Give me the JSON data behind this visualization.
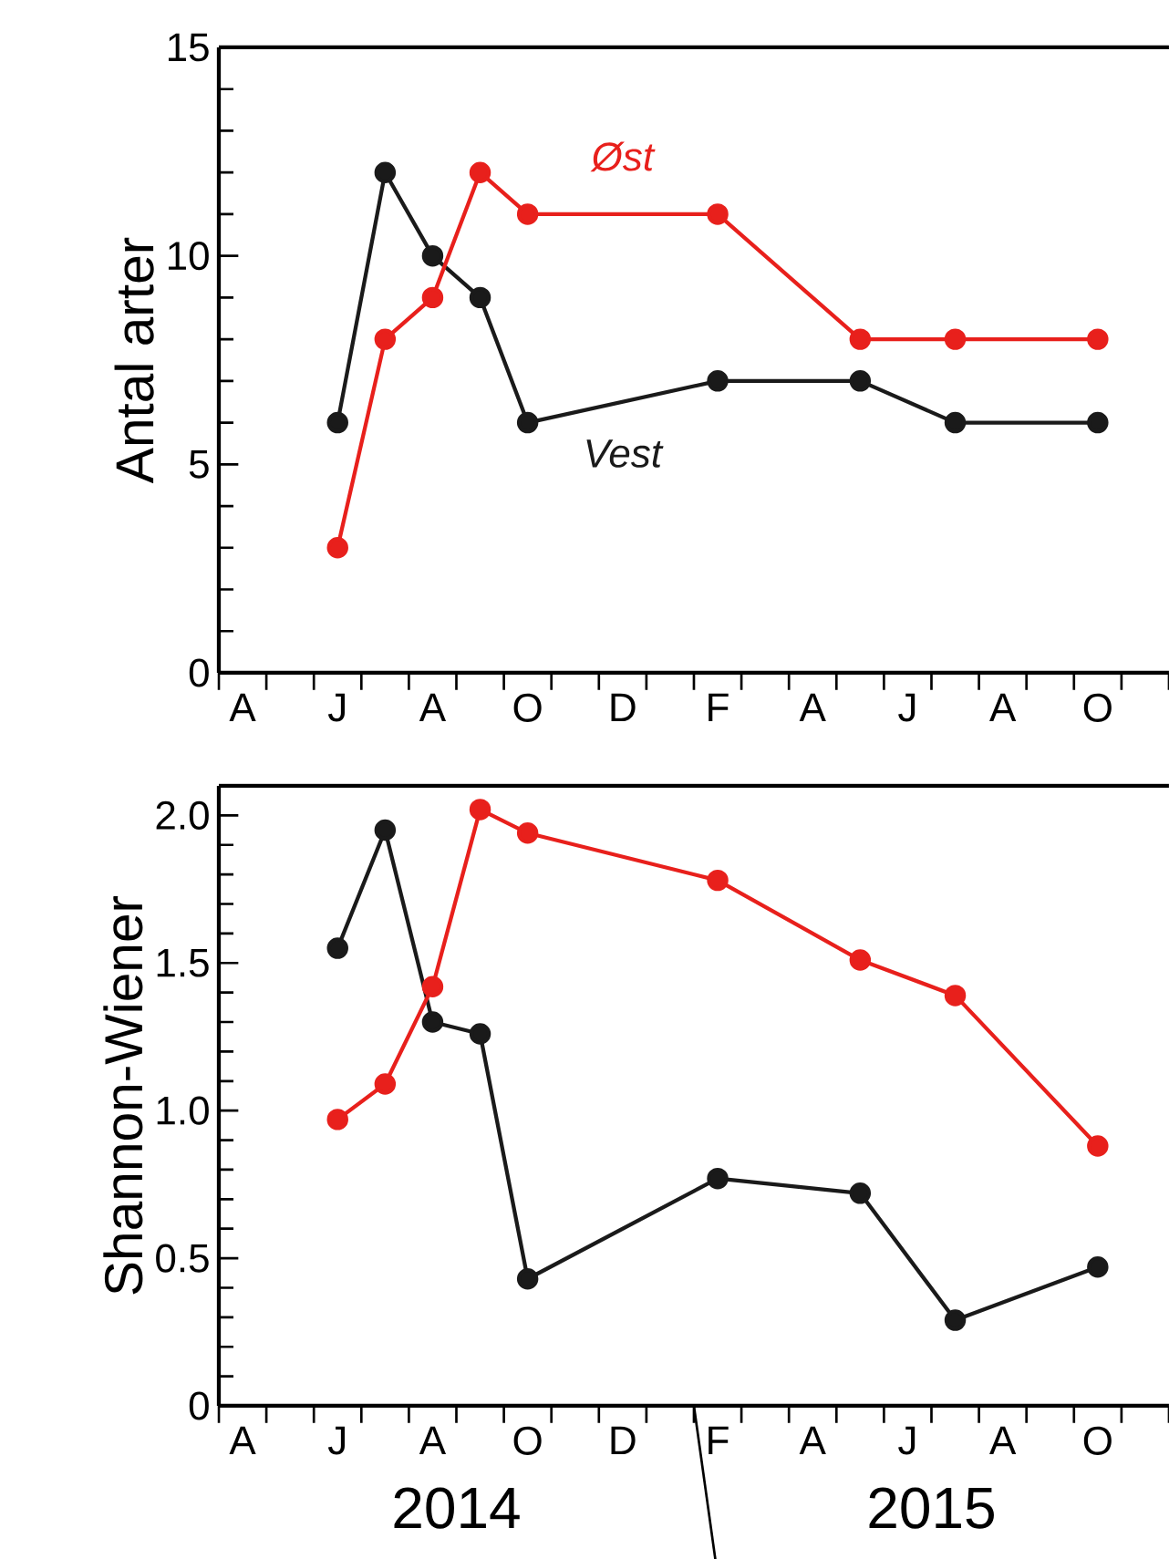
{
  "chart_data": [
    {
      "type": "line",
      "ylabel": "Antal arter",
      "marker": "circle",
      "line_style": "solid",
      "categories": [
        "A",
        null,
        "J",
        null,
        "A",
        null,
        "O",
        null,
        "D",
        null,
        "F",
        null,
        "A",
        null,
        "J",
        null,
        "A",
        null,
        "O",
        null
      ],
      "series": [
        {
          "name": "Vest",
          "color": "#1a1a1a",
          "values": [
            null,
            null,
            6,
            12,
            10,
            9,
            6,
            null,
            null,
            null,
            7,
            null,
            null,
            7,
            null,
            6,
            null,
            null,
            6,
            null
          ]
        },
        {
          "name": "Øst",
          "color": "#e8201c",
          "values": [
            null,
            null,
            3,
            8,
            9,
            12,
            11,
            null,
            null,
            null,
            11,
            null,
            null,
            8,
            null,
            8,
            null,
            null,
            8,
            null
          ]
        }
      ],
      "ylim": [
        0,
        15
      ],
      "yticks": [
        0,
        {
          "value": 1,
          "label": null
        },
        {
          "value": 2,
          "label": null
        },
        {
          "value": 3,
          "label": null
        },
        {
          "value": 4,
          "label": null
        },
        5,
        {
          "value": 6,
          "label": null
        },
        {
          "value": 7,
          "label": null
        },
        {
          "value": 8,
          "label": null
        },
        {
          "value": 9,
          "label": null
        },
        10,
        {
          "value": 11,
          "label": null
        },
        {
          "value": 12,
          "label": null
        },
        {
          "value": 13,
          "label": null
        },
        {
          "value": 14,
          "label": null
        },
        15
      ]
    },
    {
      "type": "line",
      "ylabel": "Shannon-Wiener",
      "marker": "circle",
      "line_style": "solid",
      "categories": [
        "A",
        null,
        "J",
        null,
        "A",
        null,
        "O",
        null,
        "D",
        null,
        "F",
        null,
        "A",
        null,
        "J",
        null,
        "A",
        null,
        "O",
        null
      ],
      "series": [
        {
          "color": "#1a1a1a",
          "values": [
            null,
            null,
            1.55,
            1.95,
            1.3,
            1.26,
            0.43,
            null,
            null,
            null,
            0.77,
            null,
            null,
            0.72,
            null,
            0.29,
            null,
            null,
            0.47,
            null
          ]
        },
        {
          "color": "#e8201c",
          "values": [
            null,
            null,
            0.97,
            1.09,
            1.42,
            2.02,
            1.94,
            null,
            null,
            null,
            1.78,
            null,
            null,
            1.51,
            null,
            1.39,
            null,
            null,
            0.88,
            null
          ]
        }
      ],
      "ylim": [
        0,
        2.1
      ],
      "yticks": [
        0,
        {
          "value": 0.1,
          "label": null
        },
        {
          "value": 0.2,
          "label": null
        },
        {
          "value": 0.3,
          "label": null
        },
        {
          "value": 0.4,
          "label": null
        },
        0.5,
        {
          "value": 0.6,
          "label": null
        },
        {
          "value": 0.7,
          "label": null
        },
        {
          "value": 0.8,
          "label": null
        },
        {
          "value": 0.9,
          "label": null
        },
        {
          "value": 1,
          "label": "1.0"
        },
        {
          "value": 1.1,
          "label": null
        },
        {
          "value": 1.2,
          "label": null
        },
        {
          "value": 1.3,
          "label": null
        },
        {
          "value": 1.4,
          "label": null
        },
        1.5,
        {
          "value": 1.6,
          "label": null
        },
        {
          "value": 1.7,
          "label": null
        },
        {
          "value": 1.8,
          "label": null
        },
        {
          "value": 1.9,
          "label": null
        },
        {
          "value": 2,
          "label": "2.0"
        }
      ],
      "annotations": [
        "2014",
        "2015"
      ]
    }
  ]
}
